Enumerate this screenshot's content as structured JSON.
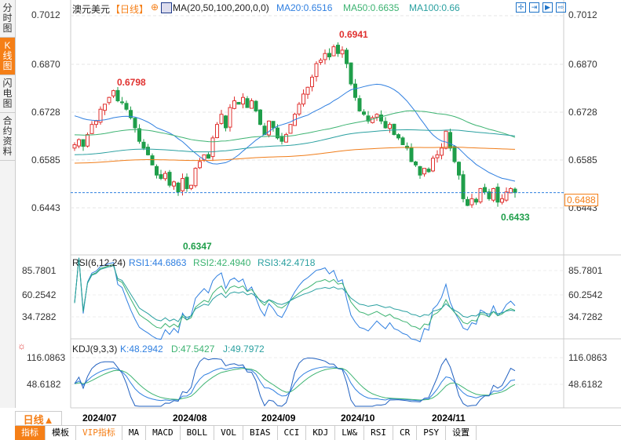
{
  "sidebar": [
    {
      "label": "分时图"
    },
    {
      "label": "K线图",
      "active": true
    },
    {
      "label": "闪电图"
    },
    {
      "label": "合约资料"
    }
  ],
  "header": {
    "symbol": "澳元美元",
    "period": "【日线】",
    "ma_label": "MA(20,50,100,200,0,0)",
    "ma20": "MA20:0.6516",
    "ma50": "MA50:0.6635",
    "ma100": "MA100:0.66"
  },
  "price_axis": [
    "0.7012",
    "0.6870",
    "0.6728",
    "0.6585",
    "0.6443"
  ],
  "current_price": "0.6488",
  "annotations": {
    "high1": "0.6798",
    "high2": "0.6941",
    "low1": "0.6347",
    "low2": "0.6433"
  },
  "rsi": {
    "label": "RSI(6,12,24)",
    "rsi1": "RSI1:44.6863",
    "rsi2": "RSI2:42.4940",
    "rsi3": "RSI3:42.4718",
    "axis": [
      "85.7801",
      "60.2542",
      "34.7282"
    ]
  },
  "kdj": {
    "label": "KDJ(9,3,3)",
    "k": "K:48.2942",
    "d": "D:47.5427",
    "j": "J:49.7972",
    "axis": [
      "116.0863",
      "48.6182"
    ]
  },
  "dates": [
    "2024/07",
    "2024/08",
    "2024/09",
    "2024/10",
    "2024/11"
  ],
  "period_button": "日线▲",
  "tabs": [
    "指标",
    "模板",
    "VIP指标",
    "MA",
    "MACD",
    "BOLL",
    "VOL",
    "BIAS",
    "CCI",
    "KDJ",
    "LW&",
    "RSI",
    "CR",
    "PSY",
    "设置"
  ],
  "colors": {
    "up": "#e0312f",
    "down": "#1f9e4a",
    "ma20": "#2f7fe0",
    "ma50": "#3cb371",
    "ma100": "#2aa0a0",
    "ma200": "#f07d1a",
    "accent": "#f57f17"
  },
  "closes": [
    0.663,
    0.6645,
    0.6625,
    0.666,
    0.669,
    0.67,
    0.6735,
    0.675,
    0.677,
    0.679,
    0.676,
    0.6755,
    0.6735,
    0.671,
    0.668,
    0.664,
    0.662,
    0.66,
    0.657,
    0.654,
    0.653,
    0.6545,
    0.651,
    0.652,
    0.649,
    0.653,
    0.65,
    0.651,
    0.656,
    0.658,
    0.66,
    0.659,
    0.665,
    0.669,
    0.672,
    0.668,
    0.674,
    0.676,
    0.675,
    0.677,
    0.674,
    0.676,
    0.673,
    0.669,
    0.666,
    0.67,
    0.668,
    0.665,
    0.664,
    0.666,
    0.669,
    0.672,
    0.675,
    0.678,
    0.68,
    0.683,
    0.687,
    0.688,
    0.69,
    0.689,
    0.692,
    0.69,
    0.691,
    0.687,
    0.681,
    0.677,
    0.673,
    0.672,
    0.67,
    0.671,
    0.672,
    0.67,
    0.668,
    0.669,
    0.666,
    0.665,
    0.663,
    0.662,
    0.658,
    0.657,
    0.654,
    0.656,
    0.655,
    0.659,
    0.66,
    0.662,
    0.667,
    0.662,
    0.658,
    0.654,
    0.647,
    0.645,
    0.647,
    0.646,
    0.65,
    0.649,
    0.647,
    0.65,
    0.646,
    0.647,
    0.649,
    0.65,
    0.6488
  ]
}
